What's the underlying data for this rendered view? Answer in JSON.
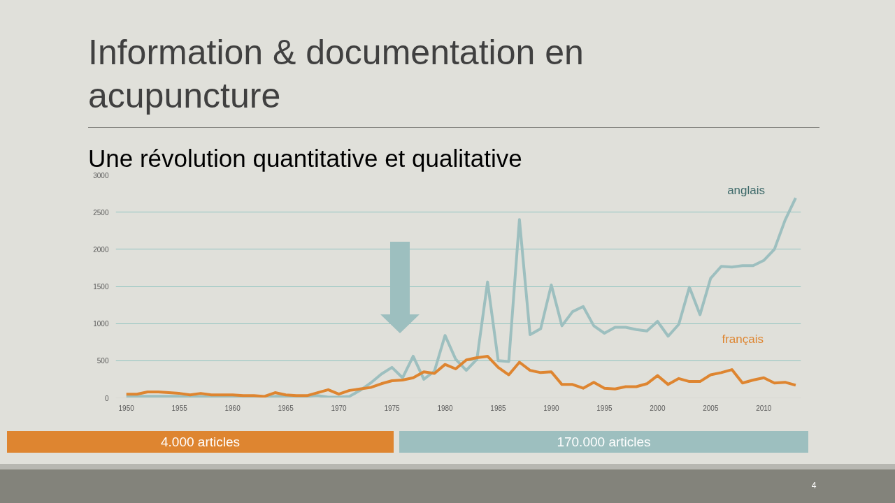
{
  "chart_data": {
    "type": "line",
    "title": "Information & documentation en acupuncture",
    "subtitle": "Une révolution quantitative et qualitative",
    "x": [
      1950,
      1951,
      1952,
      1953,
      1954,
      1955,
      1956,
      1957,
      1958,
      1959,
      1960,
      1961,
      1962,
      1963,
      1964,
      1965,
      1966,
      1967,
      1968,
      1969,
      1970,
      1971,
      1972,
      1973,
      1974,
      1975,
      1976,
      1977,
      1978,
      1979,
      1980,
      1981,
      1982,
      1983,
      1984,
      1985,
      1986,
      1987,
      1988,
      1989,
      1990,
      1991,
      1992,
      1993,
      1994,
      1995,
      1996,
      1997,
      1998,
      1999,
      2000,
      2001,
      2002,
      2003,
      2004,
      2005,
      2006,
      2007,
      2008,
      2009,
      2010,
      2011,
      2012,
      2013
    ],
    "series": [
      {
        "name": "anglais",
        "color": "#9dbfbf",
        "values": [
          20,
          20,
          20,
          20,
          20,
          20,
          10,
          20,
          10,
          10,
          10,
          10,
          10,
          10,
          20,
          20,
          20,
          20,
          30,
          10,
          10,
          20,
          100,
          200,
          320,
          410,
          270,
          560,
          250,
          360,
          840,
          520,
          370,
          520,
          1560,
          500,
          490,
          2400,
          850,
          930,
          1520,
          970,
          1160,
          1230,
          970,
          870,
          950,
          950,
          920,
          900,
          1030,
          830,
          990,
          1490,
          1120,
          1610,
          1770,
          1760,
          1780,
          1780,
          1850,
          2000,
          2390,
          2690
        ]
      },
      {
        "name": "français",
        "color": "#de8530",
        "values": [
          50,
          50,
          80,
          80,
          70,
          60,
          40,
          60,
          40,
          40,
          40,
          30,
          30,
          20,
          70,
          40,
          30,
          30,
          70,
          110,
          50,
          100,
          120,
          140,
          190,
          230,
          240,
          270,
          350,
          330,
          450,
          390,
          510,
          540,
          560,
          410,
          310,
          480,
          370,
          340,
          350,
          180,
          180,
          130,
          210,
          130,
          120,
          150,
          150,
          190,
          300,
          180,
          260,
          220,
          220,
          310,
          340,
          380,
          200,
          240,
          270,
          200,
          210,
          170
        ]
      }
    ],
    "xlim": [
      1949,
      2013.5
    ],
    "ylim": [
      0,
      3000
    ],
    "xticks": [
      1950,
      1955,
      1960,
      1965,
      1970,
      1975,
      1980,
      1985,
      1990,
      1995,
      2000,
      2005,
      2010
    ],
    "yticks": [
      0,
      500,
      1000,
      1500,
      2000,
      2500,
      3000
    ],
    "grid": "y",
    "marker": "none",
    "line_style": "solid",
    "annotations": [
      "4.000 articles",
      "170.000 articles",
      "4"
    ]
  }
}
